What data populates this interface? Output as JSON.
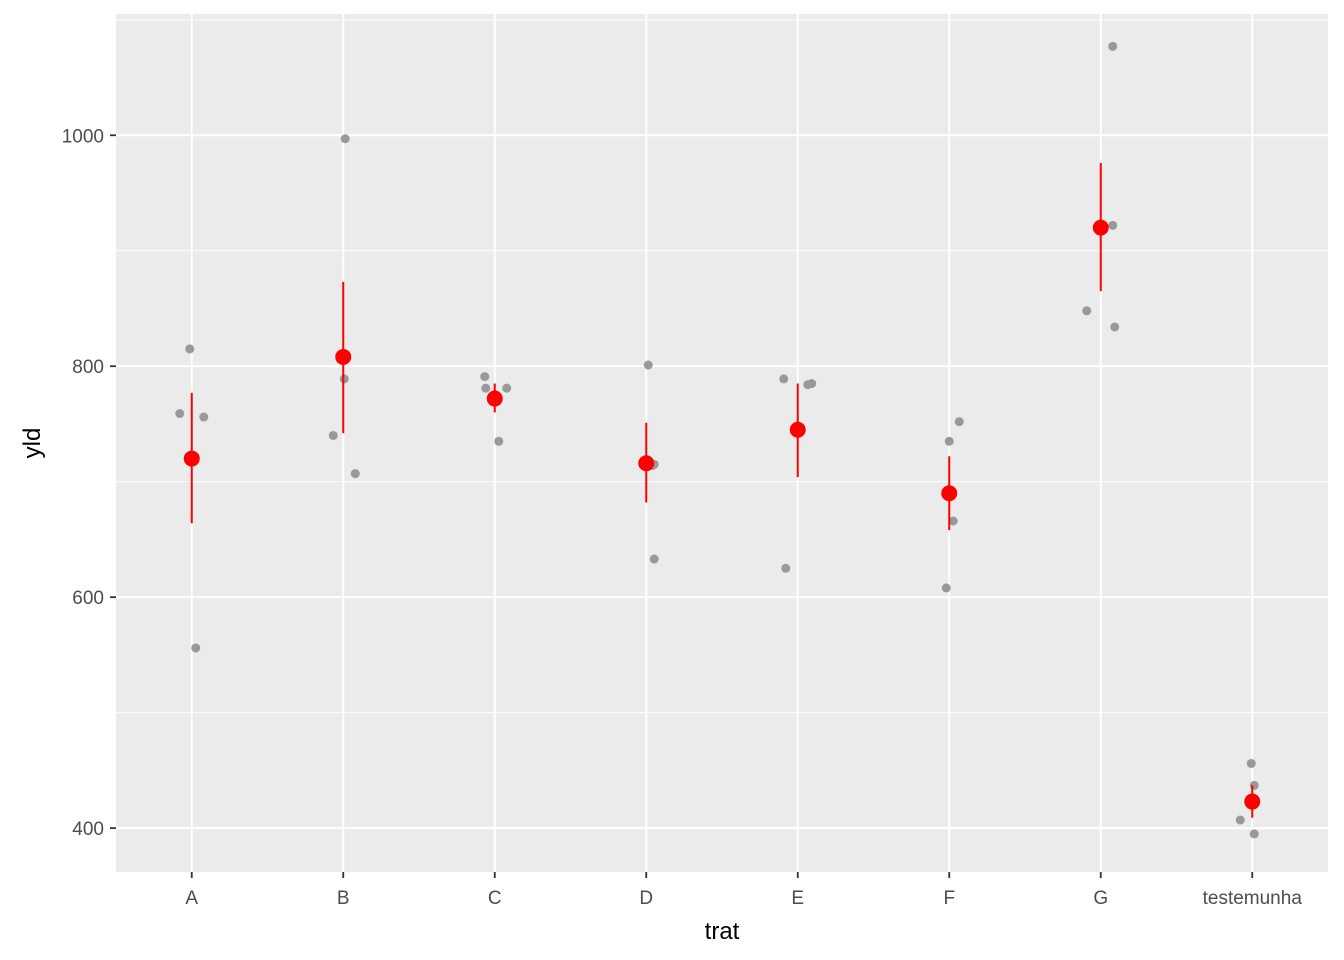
{
  "chart_data": {
    "type": "scatter",
    "title": "",
    "xlabel": "trat",
    "ylabel": "yld",
    "categories": [
      "A",
      "B",
      "C",
      "D",
      "E",
      "F",
      "G",
      "testemunha"
    ],
    "ylim": [
      362,
      1105
    ],
    "yticks": [
      400,
      600,
      800,
      1000
    ],
    "grid": true,
    "legend": "none",
    "series": [
      {
        "points": [
          {
            "cat": "A",
            "y": 815
          },
          {
            "cat": "A",
            "y": 759
          },
          {
            "cat": "A",
            "y": 756
          },
          {
            "cat": "A",
            "y": 556
          },
          {
            "cat": "B",
            "y": 997
          },
          {
            "cat": "B",
            "y": 789
          },
          {
            "cat": "B",
            "y": 740
          },
          {
            "cat": "B",
            "y": 707
          },
          {
            "cat": "C",
            "y": 791
          },
          {
            "cat": "C",
            "y": 781
          },
          {
            "cat": "C",
            "y": 781
          },
          {
            "cat": "C",
            "y": 735
          },
          {
            "cat": "D",
            "y": 801
          },
          {
            "cat": "D",
            "y": 715
          },
          {
            "cat": "D",
            "y": 714
          },
          {
            "cat": "D",
            "y": 633
          },
          {
            "cat": "E",
            "y": 789
          },
          {
            "cat": "E",
            "y": 785
          },
          {
            "cat": "E",
            "y": 784
          },
          {
            "cat": "E",
            "y": 625
          },
          {
            "cat": "F",
            "y": 752
          },
          {
            "cat": "F",
            "y": 735
          },
          {
            "cat": "F",
            "y": 666
          },
          {
            "cat": "F",
            "y": 608
          },
          {
            "cat": "G",
            "y": 1077
          },
          {
            "cat": "G",
            "y": 922
          },
          {
            "cat": "G",
            "y": 848
          },
          {
            "cat": "G",
            "y": 834
          },
          {
            "cat": "testemunha",
            "y": 456
          },
          {
            "cat": "testemunha",
            "y": 437
          },
          {
            "cat": "testemunha",
            "y": 407
          },
          {
            "cat": "testemunha",
            "y": 395
          }
        ],
        "color": "#999999"
      },
      {
        "means": [
          720,
          808,
          772,
          716,
          745,
          690,
          920,
          423
        ],
        "lower": [
          664,
          742,
          760,
          682,
          704,
          658,
          865,
          409
        ],
        "upper": [
          777,
          873,
          785,
          751,
          785,
          722,
          976,
          437
        ],
        "color": "#ff0000"
      }
    ]
  },
  "colors": {
    "panel": "#ebebeb",
    "grid": "#ffffff",
    "raw_points": "#999999",
    "summary": "#ff0000"
  }
}
